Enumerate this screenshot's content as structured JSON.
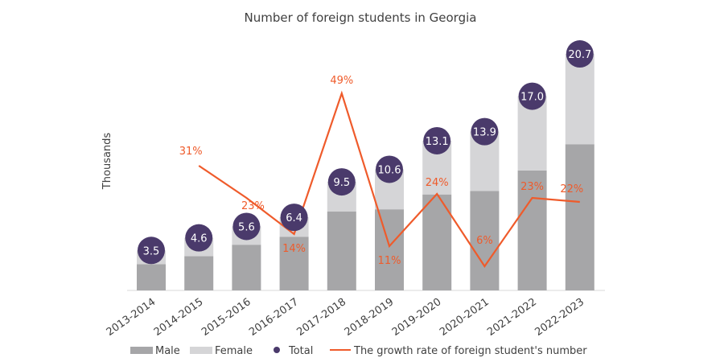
{
  "chart_data": {
    "type": "bar",
    "title": "Number of foreign students in Georgia",
    "ylabel": "Thousands",
    "categories": [
      "2013-2014",
      "2014-2015",
      "2015-2016",
      "2016-2017",
      "2017-2018",
      "2018-2019",
      "2019-2020",
      "2020-2021",
      "2021-2022",
      "2022-2023"
    ],
    "series": [
      {
        "name": "Male",
        "kind": "stacked-bar",
        "values": [
          2.3,
          3.0,
          4.0,
          4.7,
          6.9,
          7.1,
          8.4,
          8.7,
          10.5,
          12.8
        ]
      },
      {
        "name": "Female",
        "kind": "stacked-bar",
        "values": [
          1.2,
          1.6,
          1.6,
          1.7,
          2.6,
          3.5,
          4.7,
          5.2,
          6.5,
          7.9
        ]
      },
      {
        "name": "Total",
        "kind": "marker",
        "values": [
          3.5,
          4.6,
          5.6,
          6.4,
          9.5,
          10.6,
          13.1,
          13.9,
          17.0,
          20.7
        ],
        "labels": [
          "3.5",
          "4.6",
          "5.6",
          "6.4",
          "9.5",
          "10.6",
          "13.1",
          "13.9",
          "17.0",
          "20.7"
        ]
      },
      {
        "name": "The growth rate of foreign student's number",
        "kind": "line",
        "values": [
          null,
          31,
          23,
          14,
          49,
          11,
          24,
          6,
          23,
          22
        ],
        "labels": [
          "",
          "31%",
          "23%",
          "14%",
          "49%",
          "11%",
          "24%",
          "6%",
          "23%",
          "22%"
        ]
      }
    ],
    "ylim": [
      0,
      22
    ],
    "y2lim": [
      0,
      55
    ],
    "grid": false,
    "legend": "bottom",
    "colors": {
      "male": "#a6a6a8",
      "female": "#d5d5d7",
      "total": "#4a3a6b",
      "rate": "#ef5b2b",
      "text": "#404040",
      "axis": "#d9d9d9"
    }
  }
}
